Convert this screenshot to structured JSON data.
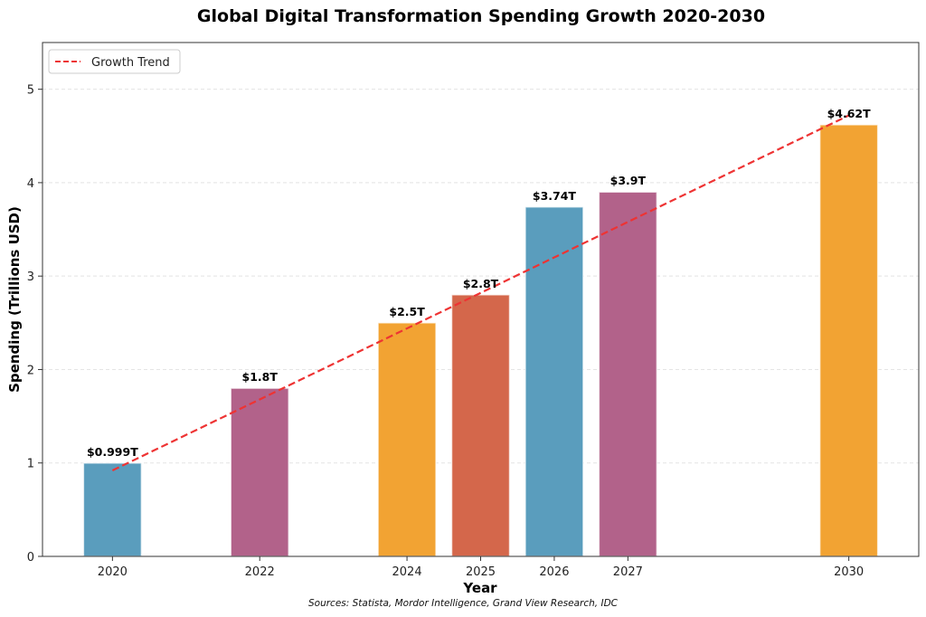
{
  "chart_data": {
    "type": "bar",
    "title": "Global Digital Transformation Spending Growth 2020-2030",
    "xlabel": "Year",
    "ylabel": "Spending (Trillions USD)",
    "source_note": "Sources: Statista, Mordor Intelligence, Grand View Research, IDC",
    "x": [
      2020,
      2022,
      2024,
      2025,
      2026,
      2027,
      2030
    ],
    "x_tick_labels": [
      "2020",
      "2022",
      "2024",
      "2025",
      "2026",
      "2027",
      "2030"
    ],
    "values": [
      0.999,
      1.8,
      2.5,
      2.8,
      3.74,
      3.9,
      4.62
    ],
    "value_labels": [
      "$0.999T",
      "$1.8T",
      "$2.5T",
      "$2.8T",
      "$3.74T",
      "$3.9T",
      "$4.62T"
    ],
    "bar_colors": [
      "#5a9dbd",
      "#b2628a",
      "#f2a333",
      "#d4674b",
      "#5a9dbd",
      "#b2628a",
      "#f2a333"
    ],
    "ylim": [
      0,
      5.5
    ],
    "xlim": [
      2019.05,
      2030.95
    ],
    "y_ticks": [
      0,
      1,
      2,
      3,
      4,
      5
    ],
    "y_tick_labels": [
      "0",
      "1",
      "2",
      "3",
      "4",
      "5"
    ],
    "grid": true,
    "trend": {
      "name": "Growth Trend",
      "style": "dashed",
      "color": "#ee3333",
      "x": [
        2020,
        2030
      ],
      "y": [
        0.92,
        4.72
      ]
    },
    "legend": {
      "position": "top-left",
      "entries": [
        "Growth Trend"
      ]
    }
  }
}
